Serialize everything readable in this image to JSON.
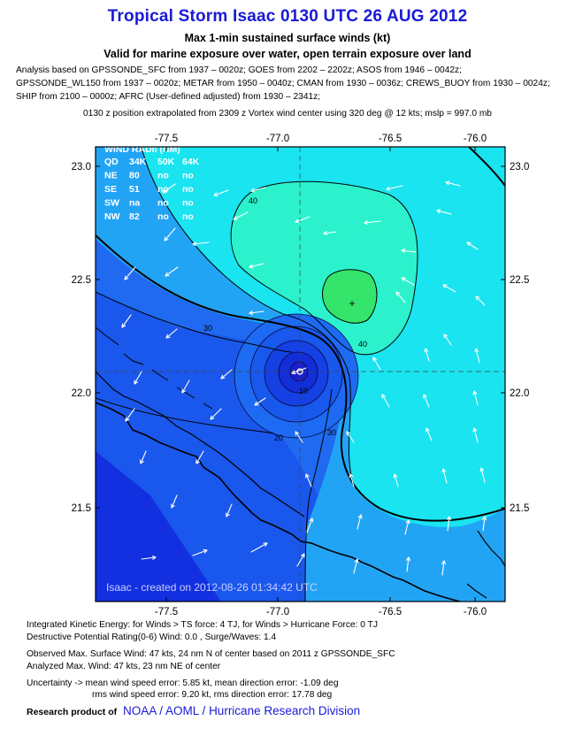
{
  "header": {
    "title": "Tropical Storm Isaac 0130 UTC 26 AUG 2012",
    "subtitle1": "Max 1-min sustained surface winds (kt)",
    "subtitle2": "Valid for marine exposure over water, open terrain exposure over land",
    "analysis_lines": [
      "Analysis based on GPSSONDE_SFC from 1937 – 0020z; GOES from 2202 – 2202z; ASOS from 1946 – 0042z;",
      "GPSSONDE_WL150 from 1937 – 0020z; METAR from 1950 – 0040z; CMAN from 1930 – 0036z; CREWS_BUOY from 1930 – 0024z;",
      "SHIP from 2100 – 0000z; AFRC (User-defined adjusted) from 1930 – 2341z;"
    ],
    "position_note": "0130 z position extrapolated from 2309 z Vortex wind center using 320 deg @ 12 kts; mslp = 997.0 mb"
  },
  "map": {
    "lon_ticks": [
      "-77.5",
      "-77.0",
      "-76.5",
      "-76.0"
    ],
    "lat_ticks": [
      "23.0",
      "22.5",
      "22.0",
      "21.5"
    ],
    "contour_labels": [
      "40",
      "30",
      "40",
      "30",
      "20",
      "10"
    ],
    "credit_line": "Isaac - created on 2012-08-26 01:34:42 UTC",
    "wind_radii": {
      "title": "WIND RADII (NM)",
      "headers": [
        "QD",
        "34K",
        "50K",
        "64K"
      ],
      "rows": [
        [
          "NE",
          "80",
          "no",
          "no"
        ],
        [
          "SE",
          "51",
          "no",
          "no"
        ],
        [
          "SW",
          "na",
          "no",
          "no"
        ],
        [
          "NW",
          "82",
          "no",
          "no"
        ]
      ]
    },
    "colors": {
      "frame": "#0b0b0b",
      "deep_blue": "#1230e0",
      "mid_blue": "#1f6af0",
      "light_blue": "#22a4f5",
      "cyan": "#19e4f0",
      "aqua": "#2bf2cc",
      "green": "#35e46a"
    }
  },
  "footer": {
    "lines": [
      "Integrated Kinetic Energy: for Winds > TS force: 4 TJ, for Winds > Hurricane Force: 0 TJ",
      "Destructive Potential Rating(0-6)  Wind: 0.0 , Surge/Waves: 1.4",
      "Observed Max. Surface Wind: 47 kts, 24 nm N of center based on 2011 z GPSSONDE_SFC",
      "Analyzed Max. Wind: 47 kts, 23 nm  NE of center",
      "Uncertainty -> mean wind speed error:  5.85 kt, mean direction error:  -1.09 deg",
      "rms wind speed error: 9.20 kt, rms direction error: 17.78 deg"
    ],
    "research_label": "Research product of",
    "org": "NOAA / AOML / Hurricane Research Division"
  }
}
